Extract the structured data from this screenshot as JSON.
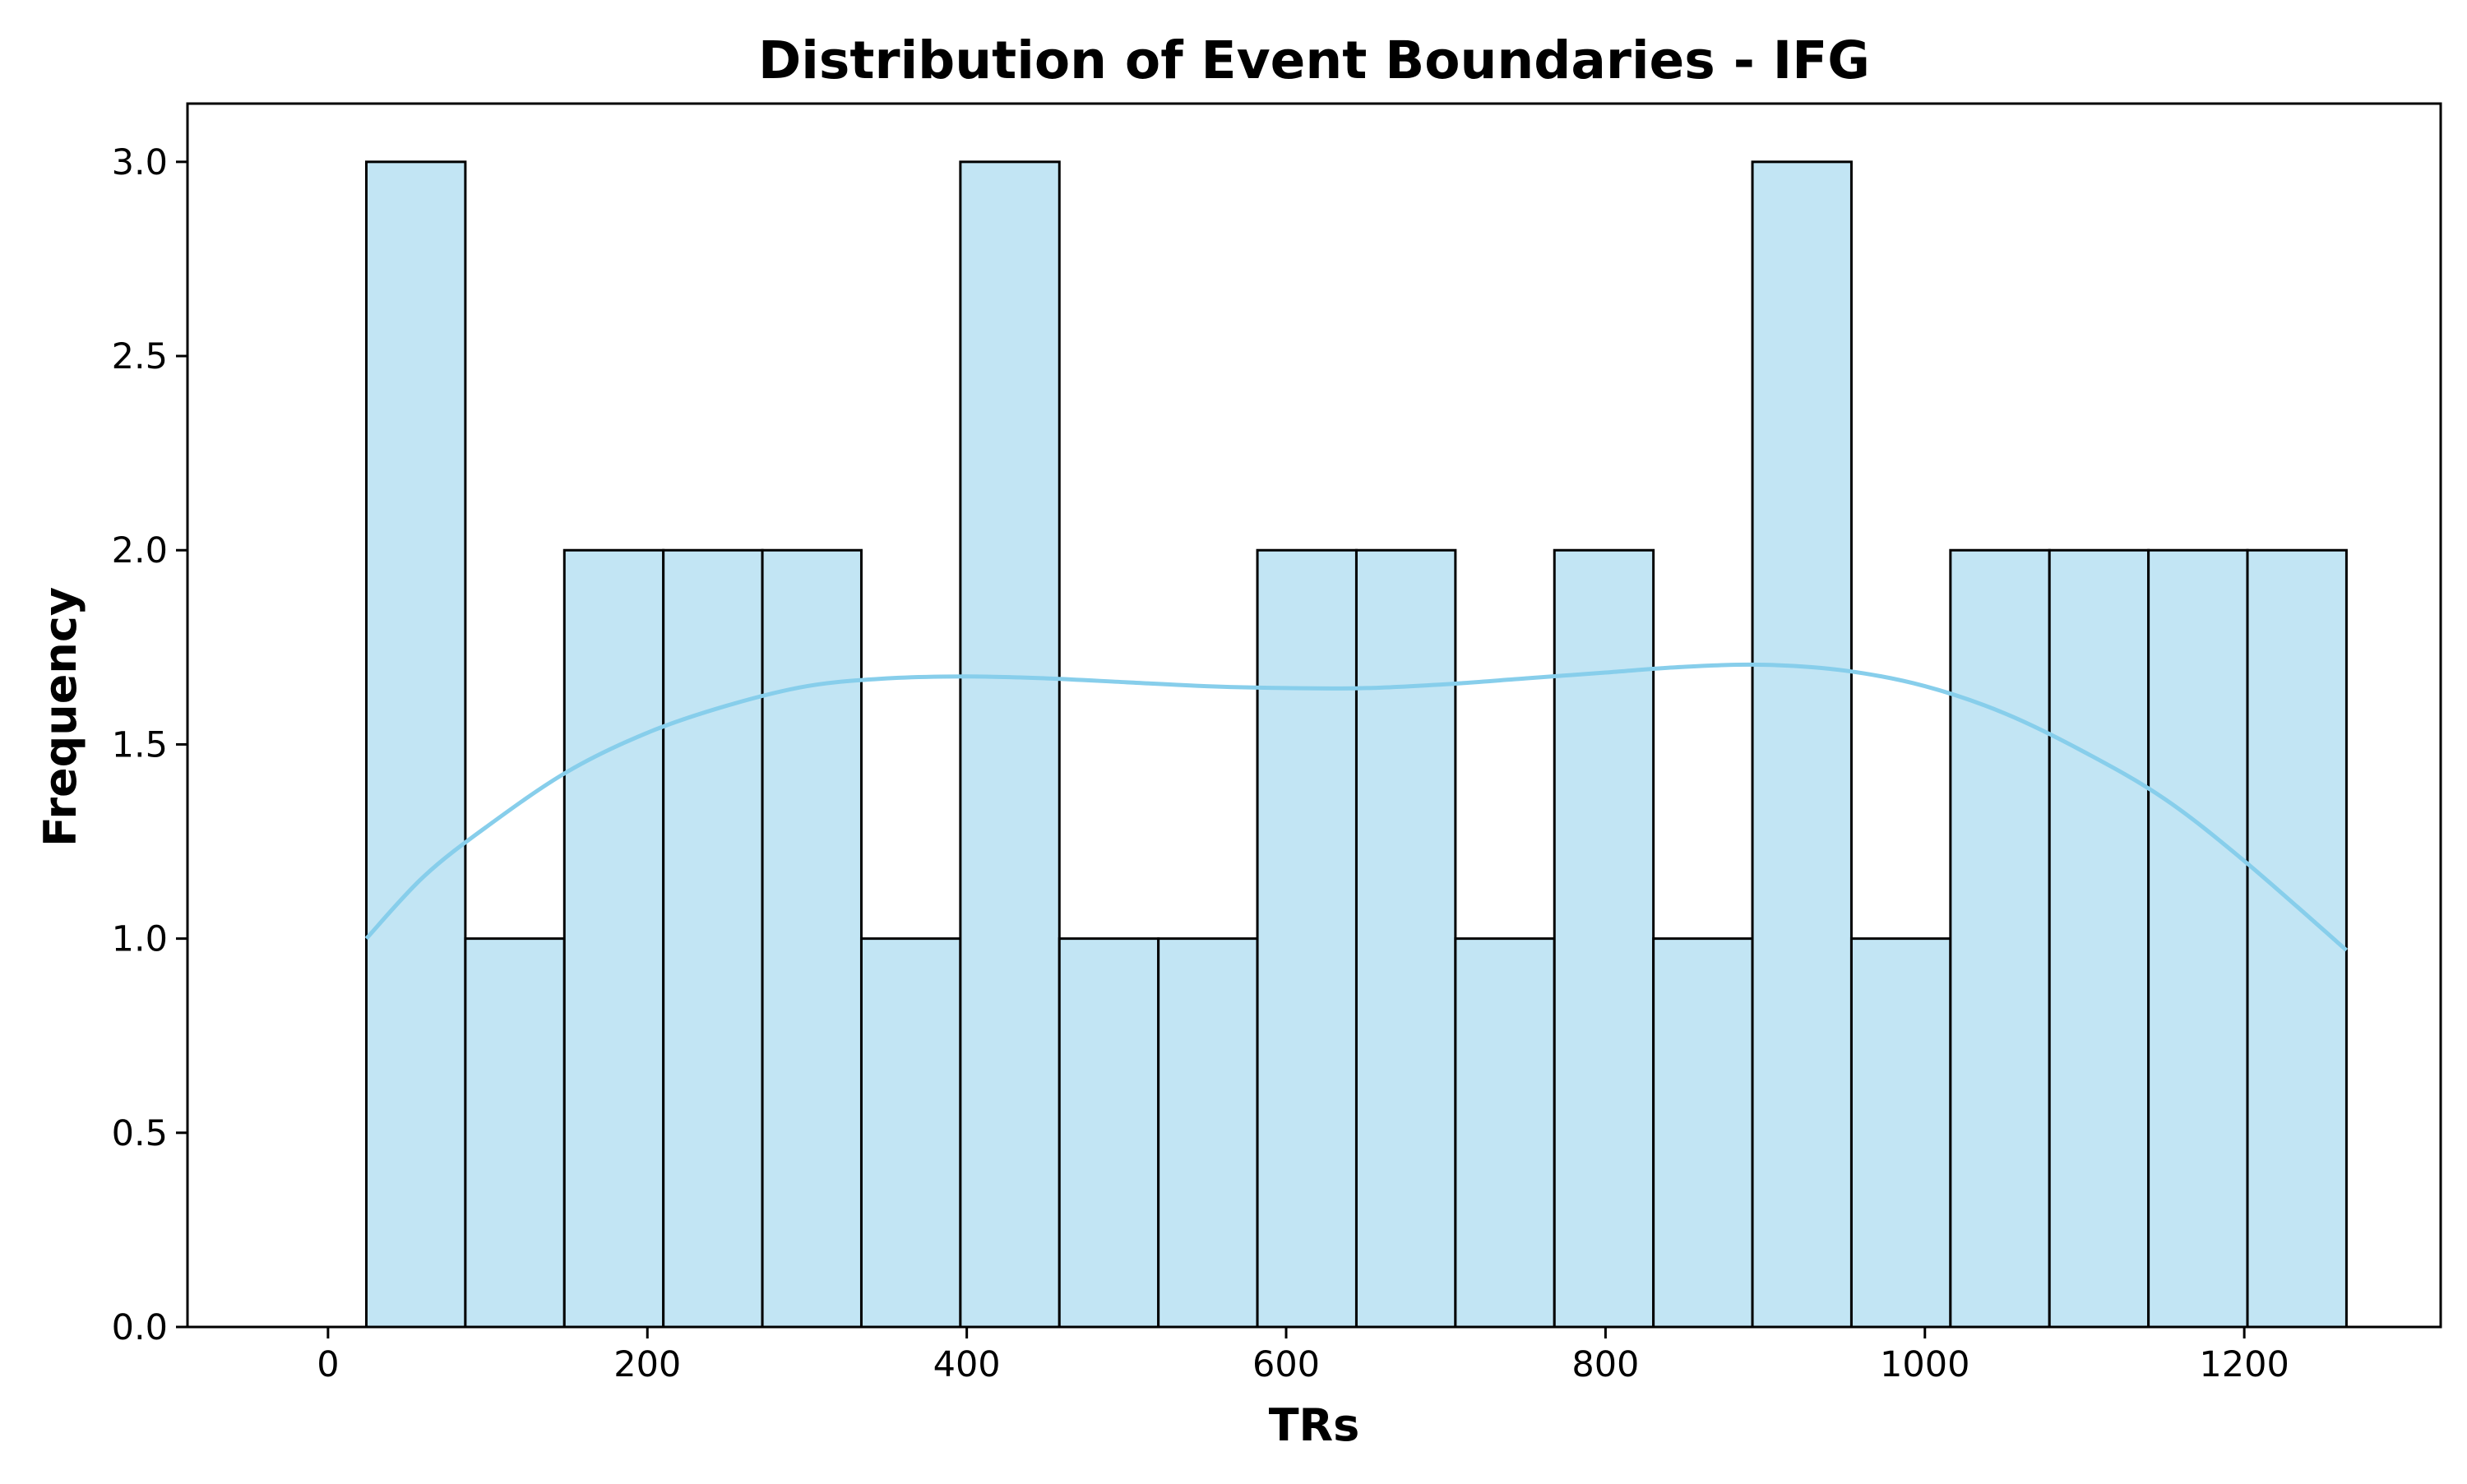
{
  "chart_data": {
    "type": "bar",
    "title": "Distribution of Event Boundaries - IFG",
    "xlabel": "TRs",
    "ylabel": "Frequency",
    "bin_edges": [
      24,
      86,
      148,
      210,
      272,
      334,
      396,
      458,
      520,
      582,
      644,
      706,
      768,
      830,
      892,
      954,
      1016,
      1078,
      1140,
      1202,
      1264
    ],
    "values": [
      3,
      1,
      2,
      2,
      2,
      1,
      3,
      1,
      1,
      2,
      2,
      1,
      2,
      1,
      3,
      1,
      2,
      2,
      2,
      2
    ],
    "xlim": [
      -88,
      1323
    ],
    "ylim": [
      0,
      3.15
    ],
    "xticks": [
      0,
      200,
      400,
      600,
      800,
      1000,
      1200
    ],
    "xtick_labels": [
      "0",
      "200",
      "400",
      "600",
      "800",
      "1000",
      "1200"
    ],
    "yticks": [
      0,
      0.5,
      1,
      1.5,
      2,
      2.5,
      3
    ],
    "ytick_labels": [
      "0.0",
      "0.5",
      "1.0",
      "1.5",
      "2.0",
      "2.5",
      "3.0"
    ],
    "kde": {
      "x": [
        24,
        60,
        100,
        150,
        200,
        250,
        300,
        350,
        400,
        450,
        500,
        550,
        600,
        650,
        700,
        750,
        800,
        850,
        900,
        950,
        1000,
        1050,
        1100,
        1150,
        1200,
        1264
      ],
      "y": [
        1.0,
        1.16,
        1.29,
        1.43,
        1.53,
        1.6,
        1.65,
        1.67,
        1.675,
        1.67,
        1.66,
        1.65,
        1.645,
        1.645,
        1.655,
        1.67,
        1.685,
        1.7,
        1.705,
        1.69,
        1.65,
        1.58,
        1.48,
        1.36,
        1.2,
        0.97
      ]
    },
    "colors": {
      "bar_fill": "#c2e5f4",
      "bar_edge": "#000000",
      "kde_line": "#87ceeb"
    },
    "grid": false,
    "legend": "none"
  }
}
